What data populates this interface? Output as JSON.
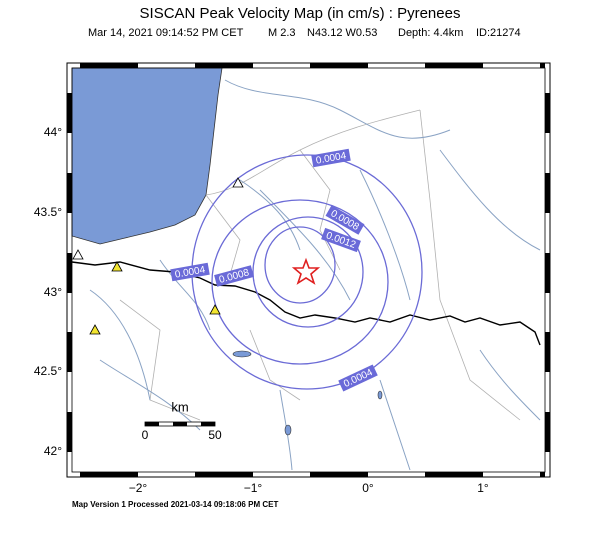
{
  "header": {
    "title": "SISCAN Peak Velocity Map (in cm/s) : Pyrenees",
    "subtitle": {
      "date": "Mar 14, 2021 09:14:52 PM CET",
      "magnitude": "M 2.3",
      "location": "N43.12 W0.53",
      "depth": "Depth: 4.4km",
      "id": "ID:21274"
    }
  },
  "map": {
    "lat_labels": [
      "44°",
      "43.5°",
      "43°",
      "42.5°",
      "42°"
    ],
    "lon_labels": [
      "−2°",
      "−1°",
      "0°",
      "1°"
    ],
    "contour_labels": [
      "0.0004",
      "0.0008",
      "0.0012",
      "0.0004",
      "0.0008",
      "0.0004"
    ],
    "scale_bar": {
      "unit": "km",
      "start": "0",
      "end": "50"
    }
  },
  "footer": "Map Version 1 Processed 2021-03-14 09:18:06 PM CET"
}
